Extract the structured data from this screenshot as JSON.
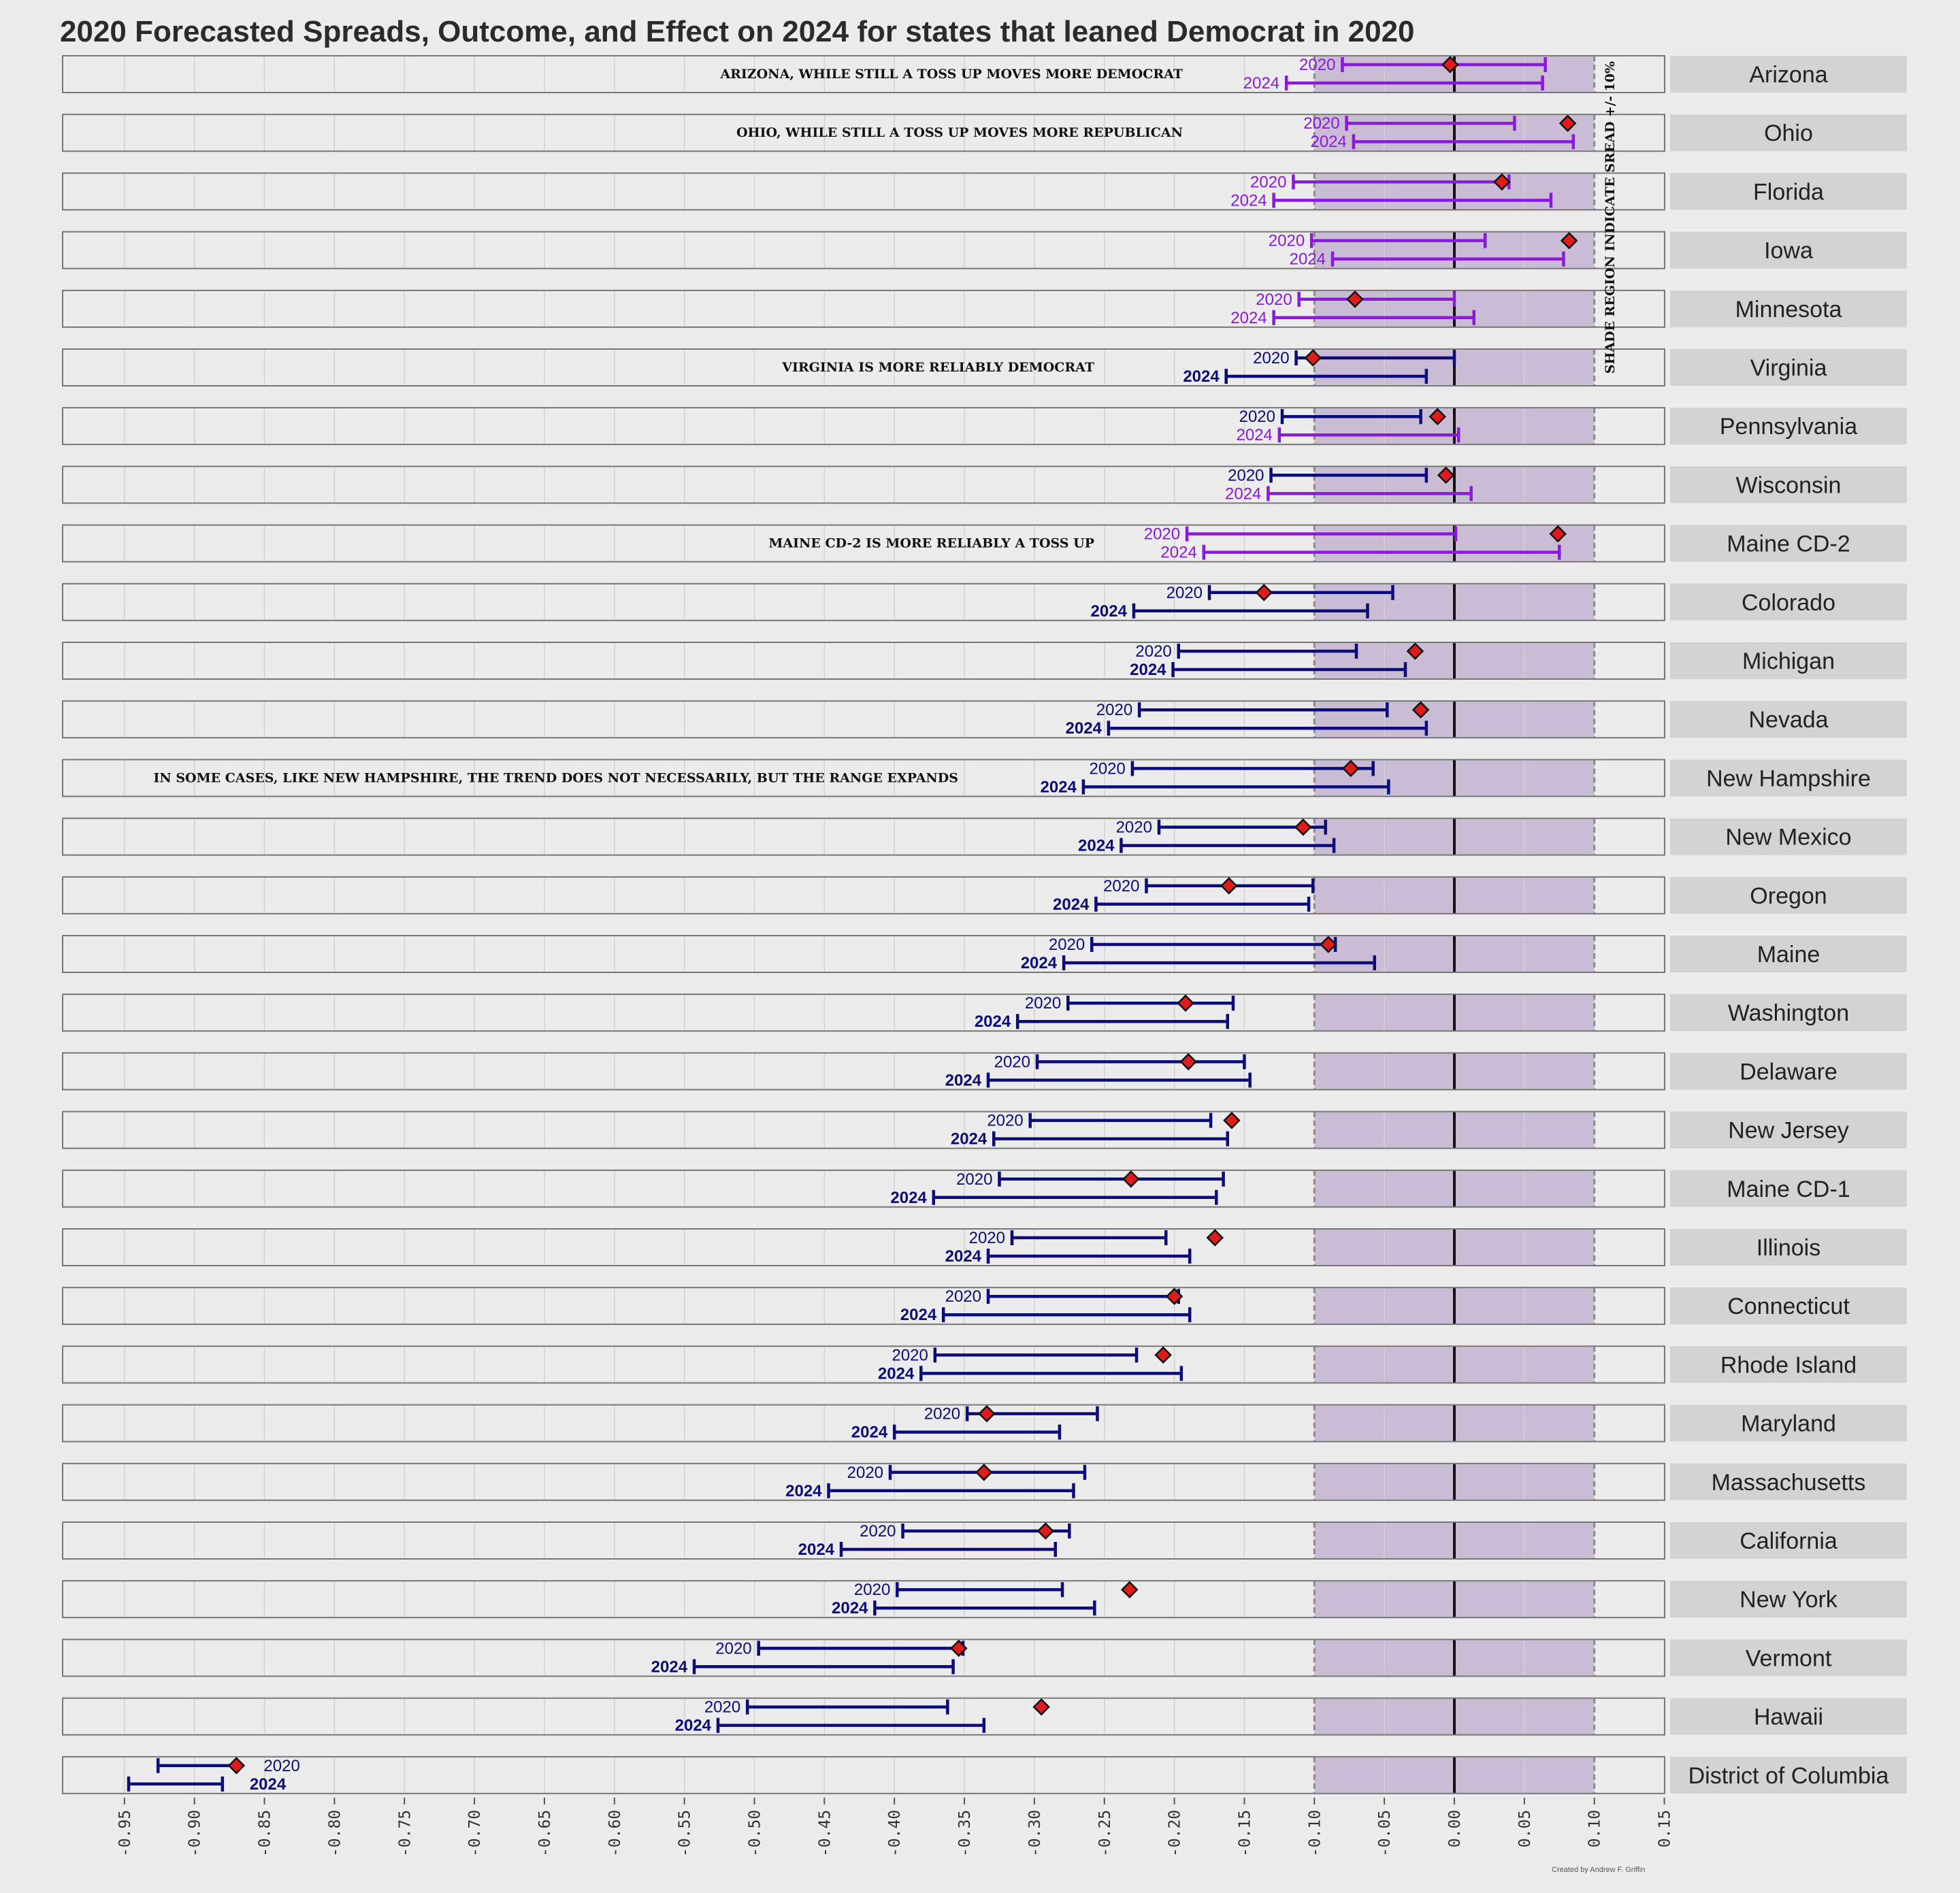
{
  "title": "2020 Forecasted Spreads, Outcome, and Effect on 2024 for states that leaned Democrat in 2020",
  "credit": "Created by Andrew F. Griffin",
  "shade_note": "SHADE REGION INDICATE SREAD +/- 10%",
  "colors": {
    "background": "#ececec",
    "panel": "#ececec",
    "shade": "#cbbcd6",
    "tossup_bar": "#8a19d8",
    "dem_bar": "#0c0c78",
    "outcome_marker": "#e01b1b",
    "state_label_bg": "#d3d3d3",
    "zero_line": "#111111"
  },
  "chart_data": {
    "type": "range",
    "title": "2020 Forecasted Spreads, Outcome, and Effect on 2024 for states that leaned Democrat in 2020",
    "x_ticks": [
      "-0.95",
      "-0.90",
      "-0.85",
      "-0.80",
      "-0.75",
      "-0.70",
      "-0.65",
      "-0.60",
      "-0.55",
      "-0.50",
      "-0.45",
      "-0.40",
      "-0.35",
      "-0.30",
      "-0.25",
      "-0.20",
      "-0.15",
      "-0.10",
      "-0.05",
      "0.00",
      "0.05",
      "0.10",
      "0.15"
    ],
    "xlim": [
      -1.0,
      0.15
    ],
    "shade_range": [
      -0.1,
      0.1
    ],
    "grid": true,
    "series_labels": [
      "2020",
      "2024"
    ],
    "states": [
      {
        "name": "Arizona",
        "r2020": [
          -0.08,
          0.065
        ],
        "r2024": [
          -0.12,
          0.063
        ],
        "outcome": -0.003,
        "tossup": true
      },
      {
        "name": "Ohio",
        "r2020": [
          -0.077,
          0.043
        ],
        "r2024": [
          -0.072,
          0.085
        ],
        "outcome": 0.081,
        "tossup": true
      },
      {
        "name": "Florida",
        "r2020": [
          -0.115,
          0.039
        ],
        "r2024": [
          -0.129,
          0.069
        ],
        "outcome": 0.034,
        "tossup": true
      },
      {
        "name": "Iowa",
        "r2020": [
          -0.102,
          0.022
        ],
        "r2024": [
          -0.087,
          0.078
        ],
        "outcome": 0.082,
        "tossup": true
      },
      {
        "name": "Minnesota",
        "r2020": [
          -0.111,
          0.0
        ],
        "r2024": [
          -0.129,
          0.014
        ],
        "outcome": -0.071,
        "tossup": true
      },
      {
        "name": "Virginia",
        "r2020": [
          -0.113,
          0.0
        ],
        "r2024": [
          -0.163,
          -0.02
        ],
        "outcome": -0.101,
        "tossup": false
      },
      {
        "name": "Pennsylvania",
        "r2020": [
          -0.123,
          -0.024
        ],
        "r2024": [
          -0.125,
          0.003
        ],
        "outcome": -0.012,
        "tossup": false,
        "tossup_2024": true
      },
      {
        "name": "Wisconsin",
        "r2020": [
          -0.131,
          -0.02
        ],
        "r2024": [
          -0.133,
          0.012
        ],
        "outcome": -0.006,
        "tossup": false,
        "tossup_2024": true
      },
      {
        "name": "Maine CD-2",
        "r2020": [
          -0.191,
          0.001
        ],
        "r2024": [
          -0.179,
          0.075
        ],
        "outcome": 0.074,
        "tossup": true
      },
      {
        "name": "Colorado",
        "r2020": [
          -0.175,
          -0.044
        ],
        "r2024": [
          -0.229,
          -0.062
        ],
        "outcome": -0.136,
        "tossup": false
      },
      {
        "name": "Michigan",
        "r2020": [
          -0.197,
          -0.07
        ],
        "r2024": [
          -0.201,
          -0.035
        ],
        "outcome": -0.028,
        "tossup": false
      },
      {
        "name": "Nevada",
        "r2020": [
          -0.225,
          -0.048
        ],
        "r2024": [
          -0.247,
          -0.02
        ],
        "outcome": -0.024,
        "tossup": false
      },
      {
        "name": "New Hampshire",
        "r2020": [
          -0.23,
          -0.058
        ],
        "r2024": [
          -0.265,
          -0.047
        ],
        "outcome": -0.074,
        "tossup": false
      },
      {
        "name": "New Mexico",
        "r2020": [
          -0.211,
          -0.092
        ],
        "r2024": [
          -0.238,
          -0.086
        ],
        "outcome": -0.108,
        "tossup": false
      },
      {
        "name": "Oregon",
        "r2020": [
          -0.22,
          -0.101
        ],
        "r2024": [
          -0.256,
          -0.104
        ],
        "outcome": -0.161,
        "tossup": false
      },
      {
        "name": "Maine",
        "r2020": [
          -0.259,
          -0.085
        ],
        "r2024": [
          -0.279,
          -0.057
        ],
        "outcome": -0.09,
        "tossup": false
      },
      {
        "name": "Washington",
        "r2020": [
          -0.276,
          -0.158
        ],
        "r2024": [
          -0.312,
          -0.162
        ],
        "outcome": -0.192,
        "tossup": false
      },
      {
        "name": "Delaware",
        "r2020": [
          -0.298,
          -0.15
        ],
        "r2024": [
          -0.333,
          -0.146
        ],
        "outcome": -0.19,
        "tossup": false
      },
      {
        "name": "New Jersey",
        "r2020": [
          -0.303,
          -0.174
        ],
        "r2024": [
          -0.329,
          -0.162
        ],
        "outcome": -0.159,
        "tossup": false
      },
      {
        "name": "Maine CD-1",
        "r2020": [
          -0.325,
          -0.165
        ],
        "r2024": [
          -0.372,
          -0.17
        ],
        "outcome": -0.231,
        "tossup": false
      },
      {
        "name": "Illinois",
        "r2020": [
          -0.316,
          -0.206
        ],
        "r2024": [
          -0.333,
          -0.189
        ],
        "outcome": -0.171,
        "tossup": false
      },
      {
        "name": "Connecticut",
        "r2020": [
          -0.333,
          -0.197
        ],
        "r2024": [
          -0.365,
          -0.189
        ],
        "outcome": -0.2,
        "tossup": false
      },
      {
        "name": "Rhode Island",
        "r2020": [
          -0.371,
          -0.227
        ],
        "r2024": [
          -0.381,
          -0.195
        ],
        "outcome": -0.208,
        "tossup": false
      },
      {
        "name": "Maryland",
        "r2020": [
          -0.348,
          -0.255
        ],
        "r2024": [
          -0.4,
          -0.282
        ],
        "outcome": -0.334,
        "tossup": false
      },
      {
        "name": "Massachusetts",
        "r2020": [
          -0.403,
          -0.264
        ],
        "r2024": [
          -0.447,
          -0.272
        ],
        "outcome": -0.336,
        "tossup": false
      },
      {
        "name": "California",
        "r2020": [
          -0.394,
          -0.275
        ],
        "r2024": [
          -0.438,
          -0.285
        ],
        "outcome": -0.292,
        "tossup": false
      },
      {
        "name": "New York",
        "r2020": [
          -0.398,
          -0.28
        ],
        "r2024": [
          -0.414,
          -0.257
        ],
        "outcome": -0.232,
        "tossup": false
      },
      {
        "name": "Vermont",
        "r2020": [
          -0.497,
          -0.351
        ],
        "r2024": [
          -0.543,
          -0.358
        ],
        "outcome": -0.354,
        "tossup": false
      },
      {
        "name": "Hawaii",
        "r2020": [
          -0.505,
          -0.362
        ],
        "r2024": [
          -0.526,
          -0.336
        ],
        "outcome": -0.295,
        "tossup": false
      },
      {
        "name": "District of Columbia",
        "r2020": [
          -0.926,
          -0.87
        ],
        "r2024": [
          -0.947,
          -0.88
        ],
        "outcome": -0.87,
        "tossup": false,
        "labels_right": true
      }
    ],
    "annotations": [
      {
        "state": "Arizona",
        "text": "ARIZONA, WHILE STILL A TOSS UP MOVES MORE DEMOCRAT"
      },
      {
        "state": "Ohio",
        "text": "OHIO, WHILE STILL A TOSS UP MOVES MORE REPUBLICAN"
      },
      {
        "state": "Virginia",
        "text": "VIRGINIA IS MORE RELIABLY DEMOCRAT"
      },
      {
        "state": "Maine CD-2",
        "text": "MAINE CD-2 IS MORE RELIABLY A TOSS UP"
      },
      {
        "state": "New Hampshire",
        "text": "IN SOME CASES, LIKE NEW HAMPSHIRE, THE TREND DOES NOT NECESSARILY, BUT THE RANGE EXPANDS"
      }
    ]
  }
}
